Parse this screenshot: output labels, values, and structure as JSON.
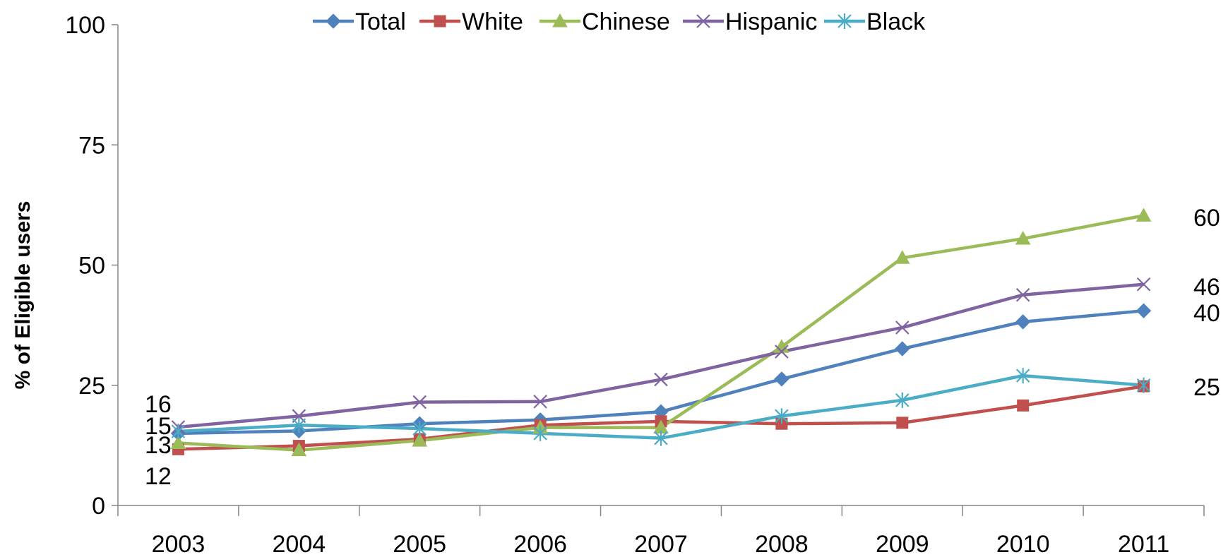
{
  "chart_data": {
    "type": "line",
    "title": "",
    "xlabel": "",
    "ylabel": "% of Eligible users",
    "x": [
      "2003",
      "2004",
      "2005",
      "2006",
      "2007",
      "2008",
      "2009",
      "2010",
      "2011"
    ],
    "ylim": [
      0,
      100
    ],
    "yticks": [
      "0",
      "25",
      "50",
      "75",
      "100"
    ],
    "grid": false,
    "legend_position": "top",
    "series": [
      {
        "name": "Total",
        "color": "#4F81BD",
        "marker": "diamond",
        "values": [
          15,
          15.5,
          17,
          17.8,
          19.5,
          26.3,
          32.6,
          38.2,
          40.5
        ]
      },
      {
        "name": "White",
        "color": "#C0504D",
        "marker": "square",
        "values": [
          11.7,
          12.4,
          13.8,
          16.7,
          17.5,
          17,
          17.2,
          20.8,
          24.8
        ]
      },
      {
        "name": "Chinese",
        "color": "#9BBB59",
        "marker": "triangle",
        "values": [
          13,
          11.5,
          13.5,
          16.2,
          16.2,
          33,
          51.5,
          55.5,
          60.3
        ]
      },
      {
        "name": "Hispanic",
        "color": "#8064A2",
        "marker": "x",
        "values": [
          16.3,
          18.6,
          21.5,
          21.6,
          26.2,
          32,
          37,
          43.8,
          46
        ]
      },
      {
        "name": "Black",
        "color": "#4BACC6",
        "marker": "star",
        "values": [
          15.4,
          16.7,
          16,
          15,
          14,
          18.6,
          21.9,
          27,
          25
        ]
      }
    ],
    "start_labels": [
      "16",
      "15",
      "13",
      "12"
    ],
    "end_labels": [
      "60",
      "46",
      "40",
      "25"
    ]
  }
}
